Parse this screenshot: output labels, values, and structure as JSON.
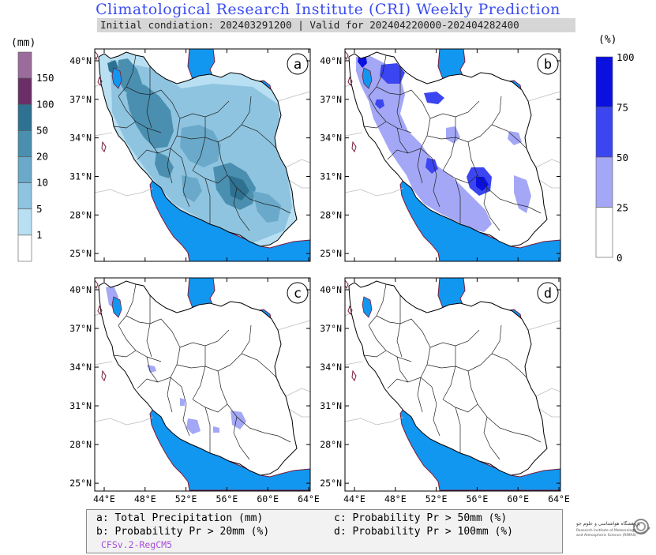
{
  "header": {
    "title": "Climatological Research Institute (CRI) Weekly Prediction",
    "subtitle": "Initial condiation: 202403291200 | Valid for 202404220000-202404282400"
  },
  "colorbars": {
    "left": {
      "unit": "(mm)",
      "labels": [
        "150",
        "100",
        "50",
        "20",
        "10",
        "5",
        "1"
      ],
      "colors": [
        "#9b6c9b",
        "#6b2f68",
        "#2e7190",
        "#4a8fb0",
        "#6aa9c9",
        "#8ec4e0",
        "#b8dff2",
        "#ffffff"
      ]
    },
    "right": {
      "unit": "(%)",
      "labels": [
        "100",
        "75",
        "50",
        "25",
        "0"
      ],
      "colors": [
        "#0a10e0",
        "#3b45f0",
        "#a3a7f5",
        "#ffffff"
      ]
    }
  },
  "panels": [
    {
      "id": "a",
      "label": "a"
    },
    {
      "id": "b",
      "label": "b"
    },
    {
      "id": "c",
      "label": "c"
    },
    {
      "id": "d",
      "label": "d"
    }
  ],
  "axes": {
    "lat_labels": [
      "40°N",
      "37°N",
      "34°N",
      "31°N",
      "28°N",
      "25°N"
    ],
    "lon_labels": [
      "44°E",
      "48°E",
      "52°E",
      "56°E",
      "60°E",
      "64°E"
    ]
  },
  "legend": {
    "a": "a: Total Precipitation (mm)",
    "b": "b: Probability Pr > 20mm (%)",
    "c": "c: Probability Pr > 50mm (%)",
    "d": "d: Probability Pr > 100mm (%)",
    "model": "CFSv.2-RegCM5"
  },
  "colors": {
    "water": "#1297f0",
    "title": "#3b4cf0",
    "coast": "#7a1a3a",
    "border": "#000000",
    "outside_border": "#bdbdbd"
  }
}
